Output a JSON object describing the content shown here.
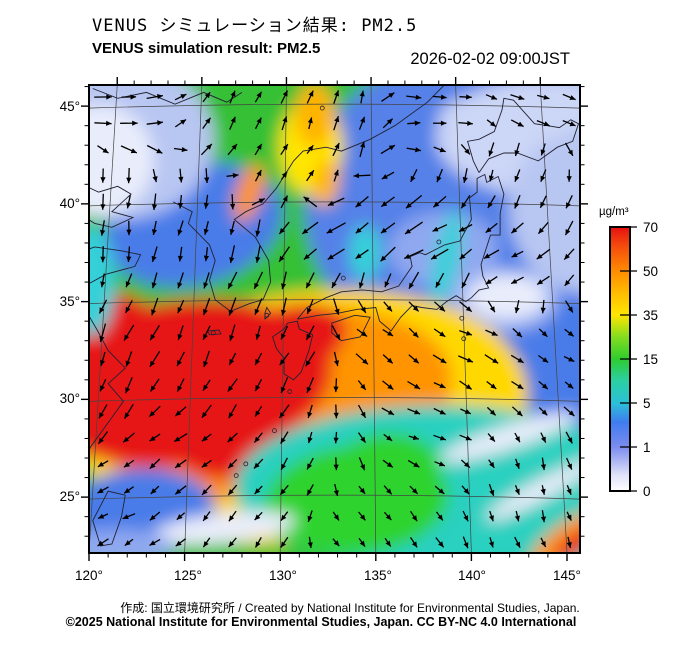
{
  "header": {
    "title_ja": "VENUS シミュレーション結果: PM2.5",
    "title_en": "VENUS simulation result: PM2.5",
    "timestamp": "2026-02-02 09:00JST"
  },
  "map": {
    "lon_labels": [
      "120°",
      "125°",
      "130°",
      "135°",
      "140°",
      "145°"
    ],
    "lat_labels": [
      "45°",
      "40°",
      "35°",
      "30°",
      "25°"
    ],
    "frame_color": "#000000",
    "grid_color": "#444444",
    "coast_color": "#222233",
    "arrow_color": "#000000"
  },
  "colorbar": {
    "unit": "µg/m³",
    "labels": [
      "70",
      "50",
      "35",
      "15",
      "5",
      "1",
      "0"
    ],
    "levels": [
      0,
      1,
      5,
      15,
      35,
      50,
      70
    ],
    "gradient": [
      {
        "off": 0.0,
        "c": "#ffffff"
      },
      {
        "off": 0.06,
        "c": "#dfe2f8"
      },
      {
        "off": 0.167,
        "c": "#7b8cee"
      },
      {
        "off": 0.26,
        "c": "#3f7cf0"
      },
      {
        "off": 0.333,
        "c": "#2bc0d8"
      },
      {
        "off": 0.42,
        "c": "#2bd0a0"
      },
      {
        "off": 0.5,
        "c": "#2ecc2e"
      },
      {
        "off": 0.58,
        "c": "#7fdc20"
      },
      {
        "off": 0.667,
        "c": "#ffe600"
      },
      {
        "off": 0.75,
        "c": "#ffbc00"
      },
      {
        "off": 0.833,
        "c": "#ff8c00"
      },
      {
        "off": 0.93,
        "c": "#f44a0e"
      },
      {
        "off": 1.0,
        "c": "#e61010"
      }
    ]
  },
  "field_colors": {
    "red": "#e61212",
    "orange": "#ff9400",
    "orange_light": "#ffb400",
    "yellow": "#ffd800",
    "yellow_bright": "#ffe600",
    "green": "#35c035",
    "green_bright": "#2ed32e",
    "teal": "#2cd0c0",
    "cyan": "#35d0d8",
    "blue": "#4a7ce8",
    "blue_mid": "#5581e8",
    "blue_light": "#8fa8f0",
    "periwinkle": "#9fb4f2",
    "lavender": "#b8c6f2",
    "lavender_light": "#ccd6f6",
    "white": "#e9edfb"
  },
  "footer": {
    "credit": "作成: 国立環境研究所 / Created by National Institute for Environmental Studies, Japan.",
    "license": "©2025 National Institute for Environmental Studies, Japan. CC BY-NC 4.0 International"
  }
}
